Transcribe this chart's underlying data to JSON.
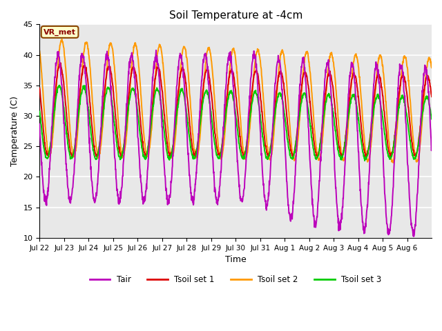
{
  "title": "Soil Temperature at -4cm",
  "xlabel": "Time",
  "ylabel": "Temperature (C)",
  "ylim": [
    10,
    45
  ],
  "yticks": [
    10,
    15,
    20,
    25,
    30,
    35,
    40,
    45
  ],
  "colors": {
    "Tair": "#bb00bb",
    "Tsoil set 1": "#dd0000",
    "Tsoil set 2": "#ff9900",
    "Tsoil set 3": "#00cc00"
  },
  "background_color": "#e8e8e8",
  "legend_label": "VR_met",
  "tick_labels": [
    "Jul 22",
    "Jul 23",
    "Jul 24",
    "Jul 25",
    "Jul 26",
    "Jul 27",
    "Jul 28",
    "Jul 29",
    "Jul 30",
    "Jul 31",
    "Aug 1",
    "Aug 2",
    "Aug 3",
    "Aug 4",
    "Aug 5",
    "Aug 6"
  ],
  "n_days": 16,
  "pts_per_day": 96
}
